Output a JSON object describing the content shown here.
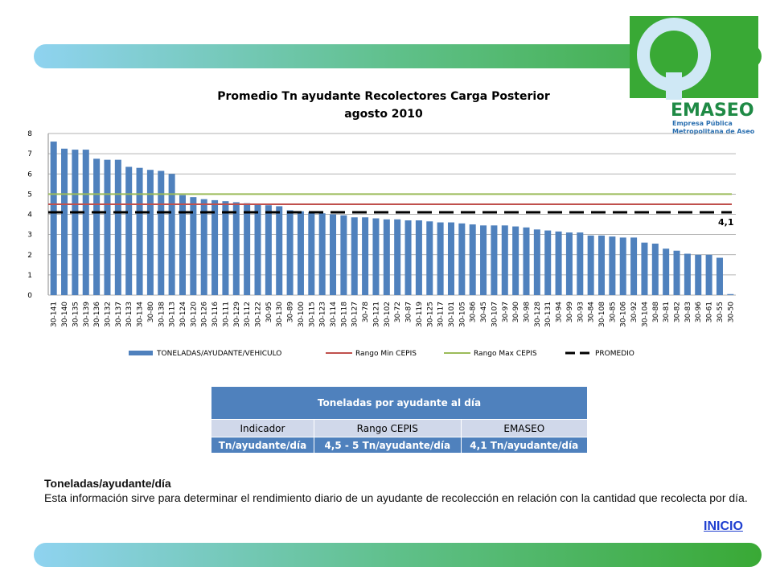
{
  "chart_data": {
    "type": "bar",
    "title": "Promedio Tn ayudante Recolectores Carga Posterior",
    "subtitle": "agosto 2010",
    "categories": [
      "30-141",
      "30-140",
      "30-135",
      "30-139",
      "30-136",
      "30-132",
      "30-137",
      "30-133",
      "30-134",
      "30-80",
      "30-138",
      "30-113",
      "30-124",
      "30-120",
      "30-126",
      "30-116",
      "30-111",
      "30-129",
      "30-112",
      "30-122",
      "30-95",
      "30-130",
      "30-89",
      "30-100",
      "30-115",
      "30-123",
      "30-114",
      "30-118",
      "30-127",
      "30-78",
      "30-121",
      "30-102",
      "30-72",
      "30-87",
      "30-119",
      "30-125",
      "30-117",
      "30-101",
      "30-105",
      "30-86",
      "30-45",
      "30-107",
      "30-97",
      "30-90",
      "30-98",
      "30-128",
      "30-131",
      "30-94",
      "30-99",
      "30-93",
      "30-84",
      "30-108",
      "30-85",
      "30-106",
      "30-92",
      "30-104",
      "30-88",
      "30-81",
      "30-82",
      "30-83",
      "30-96",
      "30-61",
      "30-55",
      "30-50"
    ],
    "series": [
      {
        "name": "TONELADAS/AYUDANTE/VEHICULO",
        "color": "#4f81bd",
        "values": [
          7.6,
          7.25,
          7.2,
          7.2,
          6.75,
          6.7,
          6.7,
          6.35,
          6.3,
          6.2,
          6.15,
          6.0,
          4.95,
          4.85,
          4.75,
          4.7,
          4.65,
          4.6,
          4.55,
          4.5,
          4.45,
          4.4,
          4.2,
          4.15,
          4.1,
          4.05,
          4.0,
          3.95,
          3.85,
          3.85,
          3.8,
          3.75,
          3.75,
          3.7,
          3.7,
          3.65,
          3.6,
          3.6,
          3.55,
          3.5,
          3.45,
          3.45,
          3.45,
          3.4,
          3.35,
          3.25,
          3.2,
          3.15,
          3.1,
          3.1,
          2.95,
          2.95,
          2.9,
          2.85,
          2.85,
          2.6,
          2.55,
          2.3,
          2.2,
          2.05,
          2.0,
          2.0,
          1.85,
          0.05
        ]
      }
    ],
    "reference_lines": [
      {
        "name": "Rango Min CEPIS",
        "color": "#c0504d",
        "value": 4.5
      },
      {
        "name": "Rango Max CEPIS",
        "color": "#9bbb59",
        "value": 5
      },
      {
        "name": "PROMEDIO",
        "color": "#000000",
        "value": 4.1,
        "dashed": true,
        "label": "4,1"
      }
    ],
    "ylim": [
      0,
      8
    ],
    "yticks": [
      0,
      1,
      2,
      3,
      4,
      5,
      6,
      7,
      8
    ],
    "grid": true
  },
  "logo": {
    "name": "EMASEO",
    "line1": "Empresa Pública",
    "line2": "Metropolitana de Aseo"
  },
  "table": {
    "title": "Toneladas por ayudante al día",
    "header": [
      "Indicador",
      "Rango CEPIS",
      "EMASEO"
    ],
    "rows": [
      [
        "Tn/ayudante/día",
        "4,5 - 5 Tn/ayudante/día",
        "4,1 Tn/ayudante/día"
      ]
    ]
  },
  "description": {
    "heading": "Toneladas/ayudante/día",
    "body": "Esta información sirve para determinar el rendimiento diario de un ayudante de recolección en relación con la cantidad que recolecta por día."
  },
  "link": "INICIO"
}
